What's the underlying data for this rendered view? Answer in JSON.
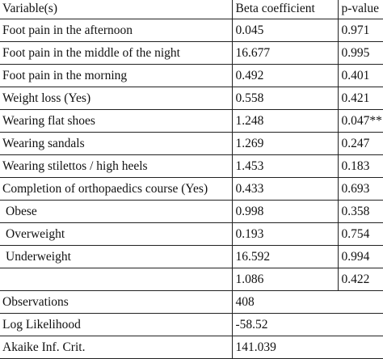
{
  "table": {
    "header": [
      "Variable(s)",
      "Beta coefficient",
      "p-value"
    ],
    "rows": [
      [
        "Foot pain in the afternoon",
        "0.045",
        "0.971"
      ],
      [
        "Foot pain in the middle of the night",
        "16.677",
        "0.995"
      ],
      [
        "Foot pain in the morning",
        "0.492",
        "0.401"
      ],
      [
        "Weight loss (Yes)",
        "0.558",
        "0.421"
      ],
      [
        "Wearing flat shoes",
        "1.248",
        "0.047**"
      ],
      [
        "Wearing sandals",
        "1.269",
        "0.247"
      ],
      [
        "Wearing stilettos / high heels",
        "1.453",
        "0.183"
      ],
      [
        "Completion of orthopaedics course (Yes)",
        "0.433",
        "0.693"
      ],
      [
        "Obese",
        "0.998",
        "0.358"
      ],
      [
        "Overweight",
        "0.193",
        "0.754"
      ],
      [
        "Underweight",
        "16.592",
        "0.994"
      ],
      [
        null,
        "1.086",
        "0.422"
      ]
    ],
    "stats": [
      [
        "Observations",
        "408"
      ],
      [
        "Log Likelihood",
        "-58.52"
      ],
      [
        "Akaike Inf. Crit.",
        "141.039"
      ]
    ]
  }
}
